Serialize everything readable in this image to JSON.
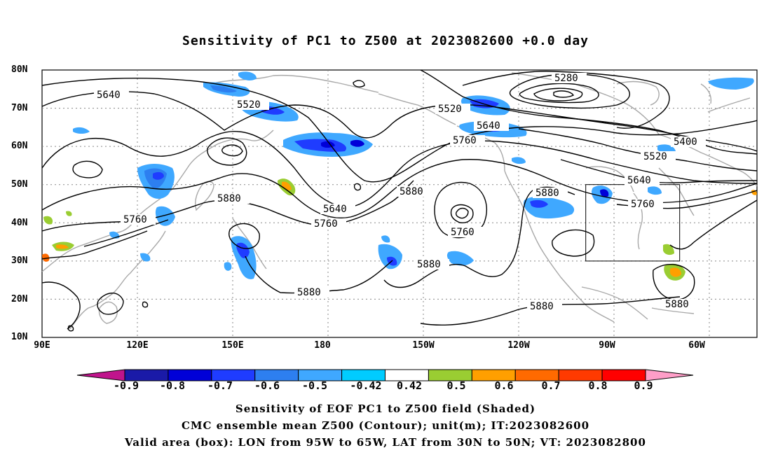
{
  "title": "Sensitivity of PC1 to Z500 at 2023082600 +0.0 day",
  "lat_ticks": [
    "80N",
    "70N",
    "60N",
    "50N",
    "40N",
    "30N",
    "20N",
    "10N"
  ],
  "lon_ticks": [
    "90E",
    "120E",
    "150E",
    "180",
    "150W",
    "120W",
    "90W",
    "60W"
  ],
  "contour_labels": [
    "5640",
    "5520",
    "5520",
    "5640",
    "5760",
    "5880",
    "5640",
    "5760",
    "5880",
    "5760",
    "5880",
    "5880",
    "5880",
    "5280",
    "5400",
    "5520",
    "5640",
    "5760",
    "5880",
    "5880"
  ],
  "colorbar": {
    "labels": [
      "-0.9",
      "-0.8",
      "-0.7",
      "-0.6",
      "-0.5",
      "-0.42",
      "0.42",
      "0.5",
      "0.6",
      "0.7",
      "0.8",
      "0.9"
    ],
    "colors": [
      "#1a1aa8",
      "#0000d8",
      "#1f3cff",
      "#2d7ff0",
      "#3fa8ff",
      "#00ccff",
      "#ffffff",
      "#9acd32",
      "#ff9f00",
      "#ff6a00",
      "#ff3a00",
      "#ff0000"
    ],
    "low_extend_color": "#c0148c",
    "high_extend_color": "#ff9ec8"
  },
  "valid_box": {
    "lon_min": -95,
    "lon_max": -65,
    "lat_min": 30,
    "lat_max": 50
  },
  "captions": [
    "Sensitivity of EOF PC1 to Z500 field (Shaded)",
    "CMC ensemble mean Z500 (Contour); unit(m); IT:2023082600",
    "Valid area (box): LON from 95W to 65W, LAT from 30N to 50N; VT: 2023082800"
  ]
}
